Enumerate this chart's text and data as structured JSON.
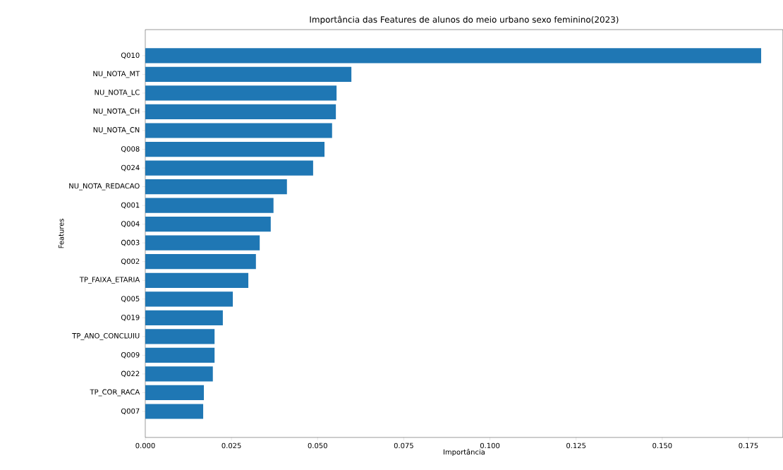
{
  "chart_data": {
    "type": "bar",
    "orientation": "horizontal",
    "title": "Importância das Features de alunos do meio urbano sexo feminino(2023)",
    "xlabel": "Importância",
    "ylabel": "Features",
    "categories": [
      "Q010",
      "NU_NOTA_MT",
      "NU_NOTA_LC",
      "NU_NOTA_CH",
      "NU_NOTA_CN",
      "Q008",
      "Q024",
      "NU_NOTA_REDACAO",
      "Q001",
      "Q004",
      "Q003",
      "Q002",
      "TP_FAIXA_ETARIA",
      "Q005",
      "Q019",
      "TP_ANO_CONCLUIU",
      "Q009",
      "Q022",
      "TP_COR_RACA",
      "Q007"
    ],
    "values": [
      0.1787,
      0.0598,
      0.0555,
      0.0553,
      0.0542,
      0.052,
      0.0487,
      0.0411,
      0.0372,
      0.0364,
      0.0332,
      0.0321,
      0.0299,
      0.0254,
      0.0225,
      0.0201,
      0.0201,
      0.0196,
      0.017,
      0.0168
    ],
    "color": "#1f77b4",
    "xlim": [
      0,
      0.185
    ],
    "xticks": [
      {
        "value": 0,
        "label": "0.000"
      },
      {
        "value": 0.025,
        "label": "0.025"
      },
      {
        "value": 0.05,
        "label": "0.050"
      },
      {
        "value": 0.075,
        "label": "0.075"
      },
      {
        "value": 0.1,
        "label": "0.100"
      },
      {
        "value": 0.125,
        "label": "0.125"
      },
      {
        "value": 0.15,
        "label": "0.150"
      },
      {
        "value": 0.175,
        "label": "0.175"
      }
    ],
    "grid": false
  }
}
